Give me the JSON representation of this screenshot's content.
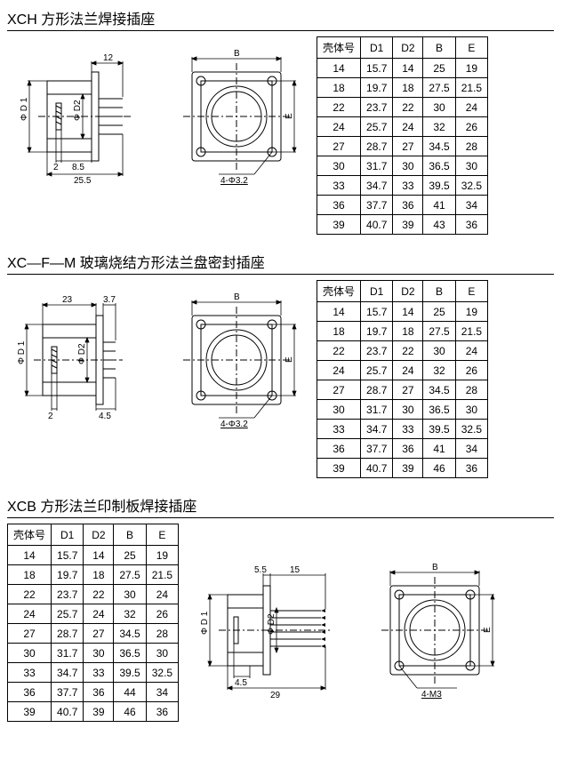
{
  "sections": [
    {
      "id": "xch",
      "title": "XCH 方形法兰焊接插座",
      "side_view": {
        "dim_top": "12",
        "dim_left": "Φ D 1",
        "dim_mid": "Φ D2",
        "dim_b1": "2",
        "dim_b2": "8.5",
        "dim_bottom": "25.5"
      },
      "front_view": {
        "dim_top": "B",
        "dim_right": "E",
        "note": "4-Φ3.2"
      },
      "table": {
        "headers": [
          "壳体号",
          "D1",
          "D2",
          "B",
          "E"
        ],
        "rows": [
          [
            "14",
            "15.7",
            "14",
            "25",
            "19"
          ],
          [
            "18",
            "19.7",
            "18",
            "27.5",
            "21.5"
          ],
          [
            "22",
            "23.7",
            "22",
            "30",
            "24"
          ],
          [
            "24",
            "25.7",
            "24",
            "32",
            "26"
          ],
          [
            "27",
            "28.7",
            "27",
            "34.5",
            "28"
          ],
          [
            "30",
            "31.7",
            "30",
            "36.5",
            "30"
          ],
          [
            "33",
            "34.7",
            "33",
            "39.5",
            "32.5"
          ],
          [
            "36",
            "37.7",
            "36",
            "41",
            "34"
          ],
          [
            "39",
            "40.7",
            "39",
            "43",
            "36"
          ]
        ]
      }
    },
    {
      "id": "xcfm",
      "title": "XC—F—M 玻璃烧结方形法兰盘密封插座",
      "side_view": {
        "dim_top": "23",
        "dim_top2": "3.7",
        "dim_left": "Φ D 1",
        "dim_mid": "Φ D2",
        "dim_b1": "2",
        "dim_b2": "4.5",
        "dim_bottom": ""
      },
      "front_view": {
        "dim_top": "B",
        "dim_right": "E",
        "note": "4-Φ3.2"
      },
      "table": {
        "headers": [
          "壳体号",
          "D1",
          "D2",
          "B",
          "E"
        ],
        "rows": [
          [
            "14",
            "15.7",
            "14",
            "25",
            "19"
          ],
          [
            "18",
            "19.7",
            "18",
            "27.5",
            "21.5"
          ],
          [
            "22",
            "23.7",
            "22",
            "30",
            "24"
          ],
          [
            "24",
            "25.7",
            "24",
            "32",
            "26"
          ],
          [
            "27",
            "28.7",
            "27",
            "34.5",
            "28"
          ],
          [
            "30",
            "31.7",
            "30",
            "36.5",
            "30"
          ],
          [
            "33",
            "34.7",
            "33",
            "39.5",
            "32.5"
          ],
          [
            "36",
            "37.7",
            "36",
            "41",
            "34"
          ],
          [
            "39",
            "40.7",
            "39",
            "46",
            "36"
          ]
        ]
      }
    },
    {
      "id": "xcb",
      "title": "XCB 方形法兰印制板焊接插座",
      "side_view": {
        "dim_top1": "5.5",
        "dim_top2": "15",
        "dim_left": "Φ D 1",
        "dim_mid": "Φ D2",
        "dim_b1": "4.5",
        "dim_bottom": "29"
      },
      "front_view": {
        "dim_top": "B",
        "dim_right": "E",
        "note": "4-M3"
      },
      "table": {
        "headers": [
          "壳体号",
          "D1",
          "D2",
          "B",
          "E"
        ],
        "rows": [
          [
            "14",
            "15.7",
            "14",
            "25",
            "19"
          ],
          [
            "18",
            "19.7",
            "18",
            "27.5",
            "21.5"
          ],
          [
            "22",
            "23.7",
            "22",
            "30",
            "24"
          ],
          [
            "24",
            "25.7",
            "24",
            "32",
            "26"
          ],
          [
            "27",
            "28.7",
            "27",
            "34.5",
            "28"
          ],
          [
            "30",
            "31.7",
            "30",
            "36.5",
            "30"
          ],
          [
            "33",
            "34.7",
            "33",
            "39.5",
            "32.5"
          ],
          [
            "36",
            "37.7",
            "36",
            "44",
            "34"
          ],
          [
            "39",
            "40.7",
            "39",
            "46",
            "36"
          ]
        ]
      }
    }
  ]
}
